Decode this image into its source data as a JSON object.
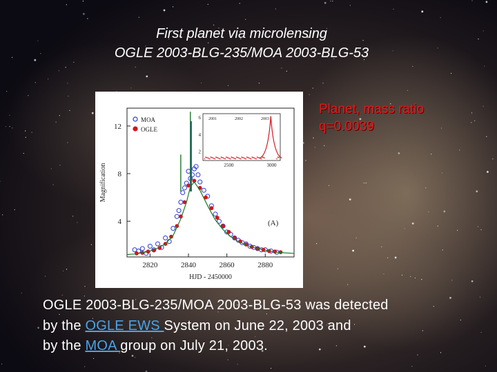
{
  "slide": {
    "title_line1": "First planet via microlensing",
    "title_line2": "OGLE 2003-BLG-235/MOA 2003-BLG-53",
    "annotation_line1": "Planet, mass ratio",
    "annotation_line2": "q=0.0039",
    "body_line1": "OGLE 2003-BLG-235/MOA 2003-BLG-53 was detected",
    "body_line2_prefix": "by the ",
    "body_line2_link": "OGLE EWS ",
    "body_line2_suffix": "System on June 22, 2003 and",
    "body_line3_prefix": "by the ",
    "body_line3_link": "MOA ",
    "body_line3_suffix": "group on July 21, 2003."
  },
  "chart_data": {
    "type": "scatter",
    "xlabel": "HJD - 2450000",
    "ylabel": "Magnification",
    "x_ticks": [
      "2820",
      "2840",
      "2860",
      "2880"
    ],
    "y_ticks": [
      "4",
      "8",
      "12"
    ],
    "xlim": [
      2808,
      2895
    ],
    "ylim": [
      1,
      13.5
    ],
    "legend": [
      "MOA",
      "OGLE"
    ],
    "panel_label": "(A)",
    "series": [
      {
        "name": "MOA",
        "marker": "open-circle",
        "color": "#2a3cd0",
        "x": [
          2812,
          2814,
          2816,
          2818,
          2820,
          2822,
          2824,
          2826,
          2828,
          2830,
          2832,
          2834,
          2835,
          2836,
          2837,
          2838,
          2839,
          2840,
          2841,
          2842,
          2843,
          2844,
          2845,
          2846,
          2848,
          2850,
          2852,
          2854,
          2856,
          2858,
          2860,
          2862,
          2864,
          2866,
          2868,
          2870,
          2872,
          2874,
          2876,
          2878,
          2880,
          2883,
          2886
        ],
        "y": [
          1.6,
          1.5,
          1.7,
          1.3,
          1.9,
          1.6,
          2.1,
          1.8,
          2.6,
          2.3,
          3.4,
          4.4,
          4.9,
          5.6,
          6.4,
          6.8,
          7.2,
          8.2,
          7.6,
          7.9,
          8.4,
          8.6,
          7.9,
          7.3,
          6.6,
          6.1,
          5.3,
          4.6,
          4.0,
          3.6,
          3.1,
          2.9,
          2.6,
          2.4,
          2.2,
          2.1,
          1.9,
          1.8,
          1.7,
          1.6,
          1.6,
          1.5,
          1.4
        ]
      },
      {
        "name": "OGLE",
        "marker": "filled-circle",
        "color": "#d4141e",
        "x": [
          2813,
          2816,
          2819,
          2822,
          2825,
          2828,
          2831,
          2834,
          2836,
          2838,
          2840,
          2843,
          2846,
          2849,
          2852,
          2855,
          2858,
          2861,
          2864,
          2867,
          2870,
          2873,
          2876,
          2879,
          2882,
          2885,
          2888
        ],
        "y": [
          1.3,
          1.35,
          1.45,
          1.55,
          1.75,
          2.1,
          2.7,
          3.6,
          4.4,
          5.6,
          7.0,
          7.4,
          6.8,
          6.0,
          5.1,
          4.3,
          3.6,
          3.1,
          2.6,
          2.3,
          2.05,
          1.85,
          1.7,
          1.6,
          1.5,
          1.45,
          1.4
        ]
      },
      {
        "name": "Model",
        "marker": "line",
        "color": "#1a7a2a",
        "x": [
          2808,
          2812,
          2816,
          2820,
          2824,
          2828,
          2832,
          2836,
          2839,
          2841,
          2843,
          2846,
          2850,
          2854,
          2858,
          2862,
          2866,
          2870,
          2874,
          2878,
          2882,
          2886,
          2890,
          2895
        ],
        "y": [
          1.2,
          1.25,
          1.35,
          1.5,
          1.75,
          2.1,
          2.8,
          4.2,
          5.6,
          6.9,
          7.3,
          6.6,
          5.3,
          4.1,
          3.3,
          2.7,
          2.3,
          2.0,
          1.8,
          1.65,
          1.5,
          1.4,
          1.35,
          1.3
        ]
      }
    ],
    "spikes": [
      {
        "name": "planet-caustic-spike",
        "x": 2841,
        "y_top": 13.2,
        "color": "#1a7a2a"
      },
      {
        "name": "moa-spike",
        "x": 2841.5,
        "y_top": 12.4,
        "color": "#2a3cd0"
      },
      {
        "name": "secondary-spike",
        "x": 2836,
        "y_top": 9.6,
        "color": "#1a7a2a"
      }
    ],
    "inset": {
      "title_ticks_x": [
        "2500",
        "3000"
      ],
      "title_ticks_y": [
        "2",
        "4",
        "6"
      ],
      "top_labels": [
        "2001",
        "2002",
        "2003"
      ],
      "xlim": [
        2200,
        3100
      ],
      "ylim": [
        1,
        6.5
      ],
      "peak_x": 2840
    }
  }
}
